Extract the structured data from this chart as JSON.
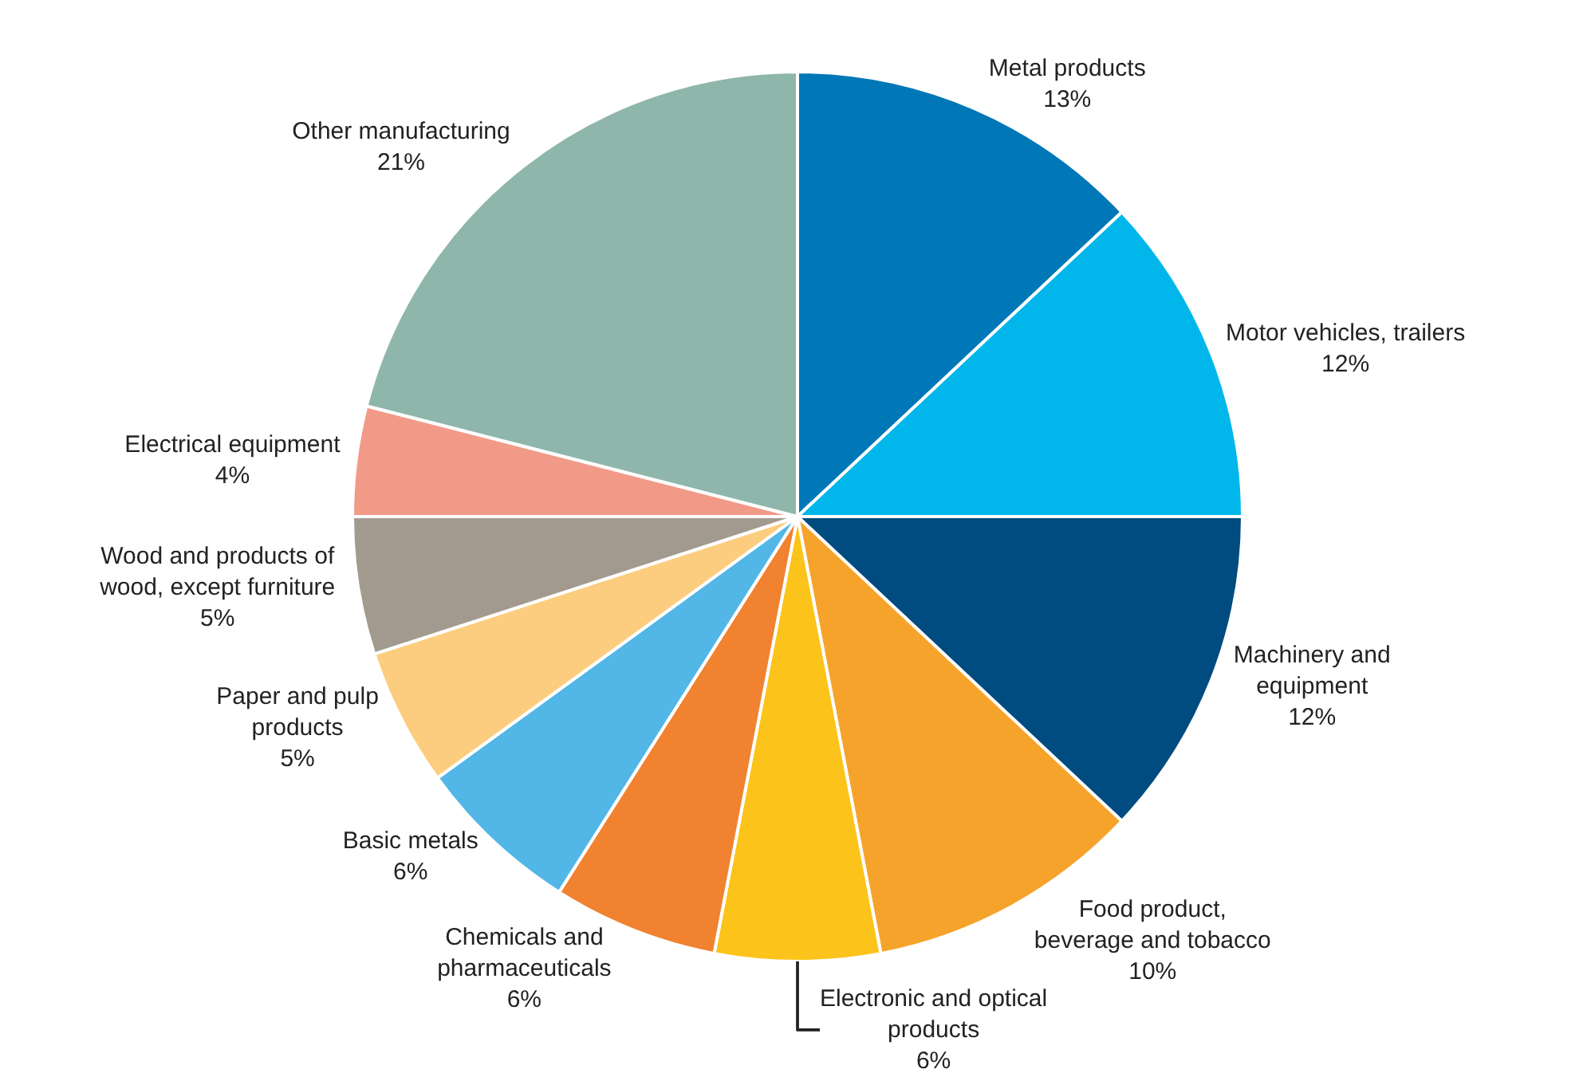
{
  "chart_data": {
    "type": "pie",
    "categories": [
      "Metal products",
      "Motor vehicles, trailers",
      "Machinery and\nequipment",
      "Food product,\nbeverage and tobacco",
      "Electronic and optical\nproducts",
      "Chemicals and\npharmaceuticals",
      "Basic metals",
      "Paper and pulp\nproducts",
      "Wood and products of\nwood, except furniture",
      "Electrical equipment",
      "Other manufacturing"
    ],
    "values": [
      13,
      12,
      12,
      10,
      6,
      6,
      6,
      5,
      5,
      4,
      21
    ],
    "value_labels": [
      "13%",
      "12%",
      "12%",
      "10%",
      "6%",
      "6%",
      "6%",
      "5%",
      "5%",
      "4%",
      "21%"
    ],
    "colors": [
      "#0077b6",
      "#00b6ea",
      "#004b7f",
      "#f6a32b",
      "#fcc31a",
      "#f08230",
      "#52b6e6",
      "#fccd7f",
      "#a39a8f",
      "#f29a88",
      "#8fb6ab"
    ],
    "legend": false
  }
}
